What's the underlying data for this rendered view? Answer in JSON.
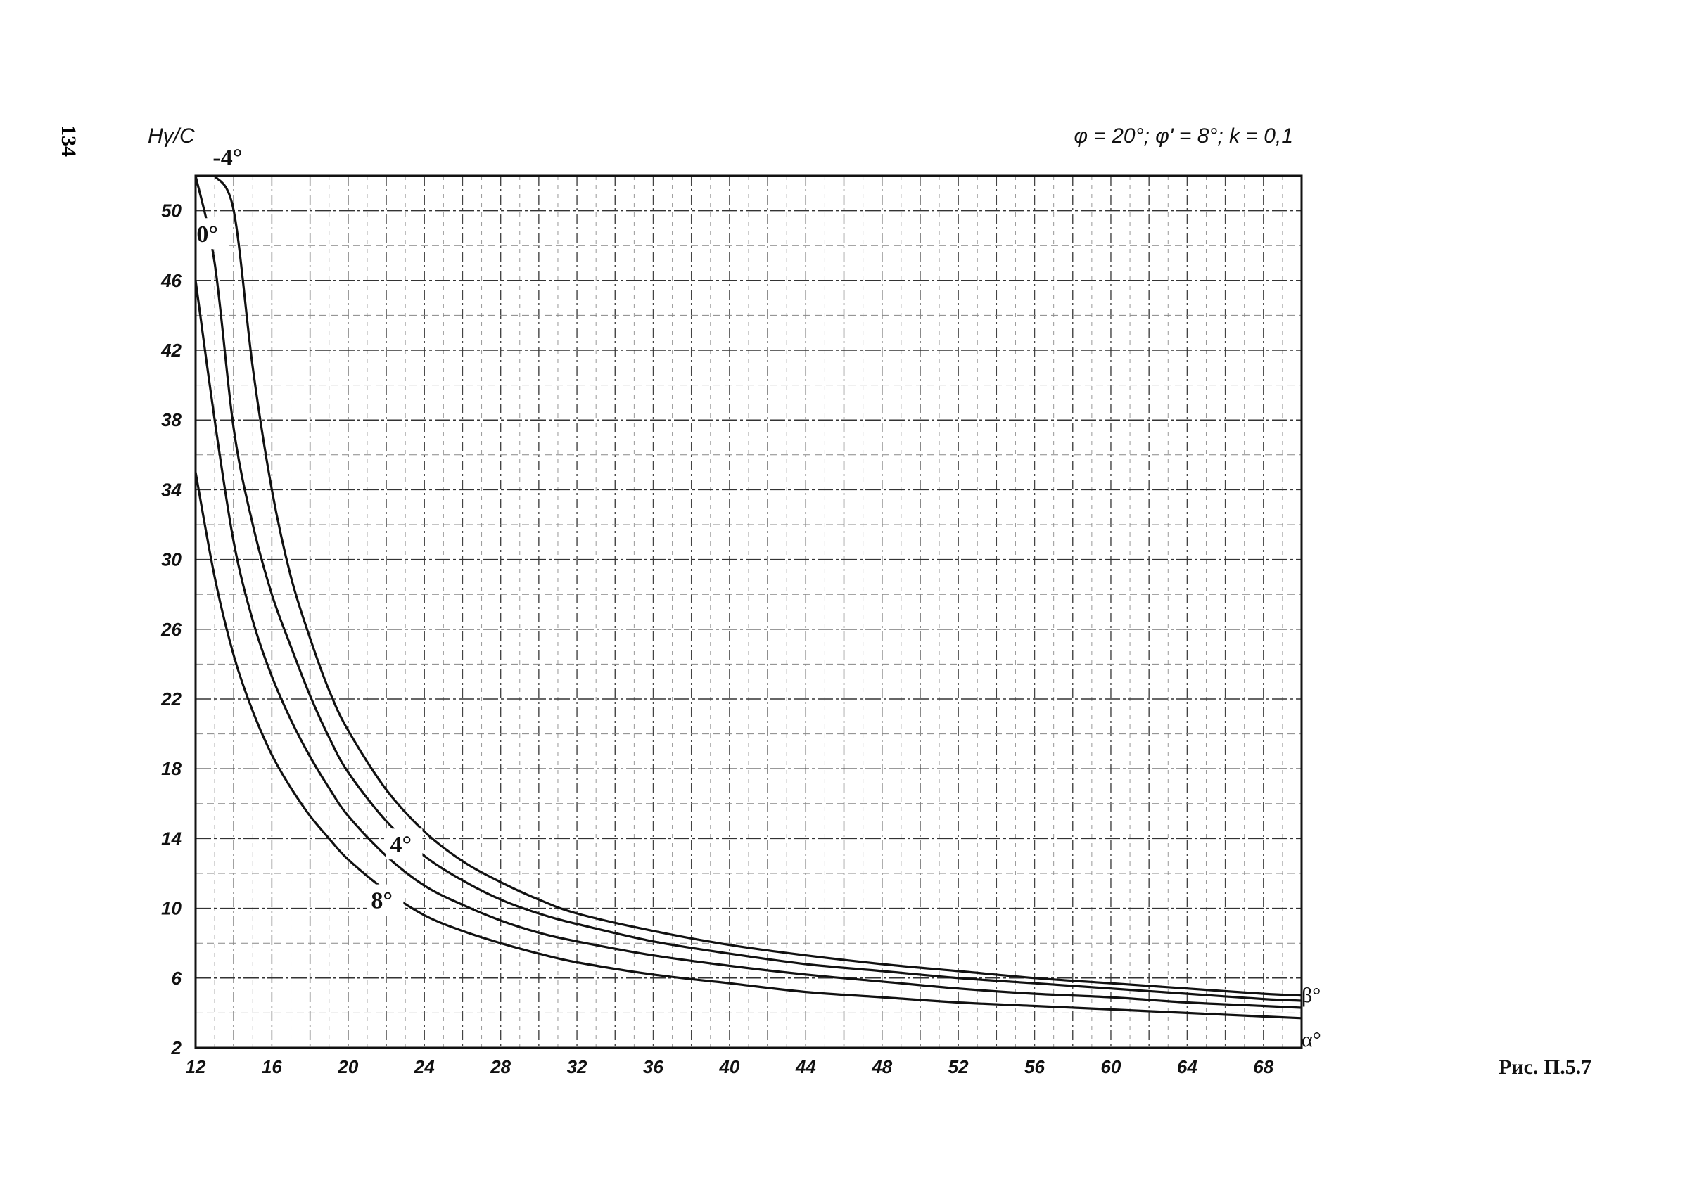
{
  "page_number": "134",
  "figure_caption": "Рис. П.5.7",
  "chart_data": {
    "type": "line",
    "title": "φ = 20°; φ' = 8°; k = 0,1",
    "ylabel": "Hγ/C",
    "xlabel": "α°",
    "right_label": "β°",
    "xlim": [
      12,
      70
    ],
    "ylim": [
      2,
      52
    ],
    "x_ticks": [
      12,
      16,
      20,
      24,
      28,
      32,
      36,
      40,
      44,
      48,
      52,
      56,
      60,
      64,
      68
    ],
    "y_ticks": [
      2,
      6,
      10,
      14,
      18,
      22,
      26,
      30,
      34,
      38,
      42,
      46,
      50
    ],
    "grid": true,
    "x": [
      12,
      13,
      14,
      15,
      16,
      17,
      18,
      19,
      20,
      22,
      24,
      26,
      28,
      30,
      32,
      36,
      40,
      44,
      48,
      52,
      56,
      60,
      64,
      68,
      70
    ],
    "series": [
      {
        "name": "-4°",
        "values": [
          null,
          52,
          50,
          41,
          34,
          29,
          25.5,
          22.5,
          20.2,
          16.8,
          14.4,
          12.7,
          11.5,
          10.5,
          9.7,
          8.7,
          7.9,
          7.3,
          6.8,
          6.4,
          6.0,
          5.7,
          5.4,
          5.1,
          5.0
        ]
      },
      {
        "name": "0°",
        "values": [
          52,
          47,
          37.5,
          32,
          28,
          25,
          22.2,
          19.8,
          17.8,
          15.0,
          13.0,
          11.6,
          10.5,
          9.7,
          9.1,
          8.1,
          7.4,
          6.8,
          6.4,
          6.0,
          5.7,
          5.4,
          5.1,
          4.8,
          4.7
        ]
      },
      {
        "name": "4°",
        "values": [
          46,
          38,
          31,
          26.5,
          23.3,
          20.8,
          18.7,
          16.9,
          15.3,
          13.0,
          11.3,
          10.2,
          9.3,
          8.6,
          8.1,
          7.3,
          6.7,
          6.2,
          5.8,
          5.4,
          5.1,
          4.9,
          4.6,
          4.4,
          4.3
        ]
      },
      {
        "name": "8°",
        "values": [
          35,
          29,
          24.5,
          21.3,
          18.8,
          16.9,
          15.3,
          14.0,
          12.8,
          11.0,
          9.6,
          8.7,
          8.0,
          7.4,
          6.9,
          6.2,
          5.7,
          5.2,
          4.9,
          4.6,
          4.4,
          4.2,
          4.0,
          3.8,
          3.7
        ]
      }
    ]
  }
}
